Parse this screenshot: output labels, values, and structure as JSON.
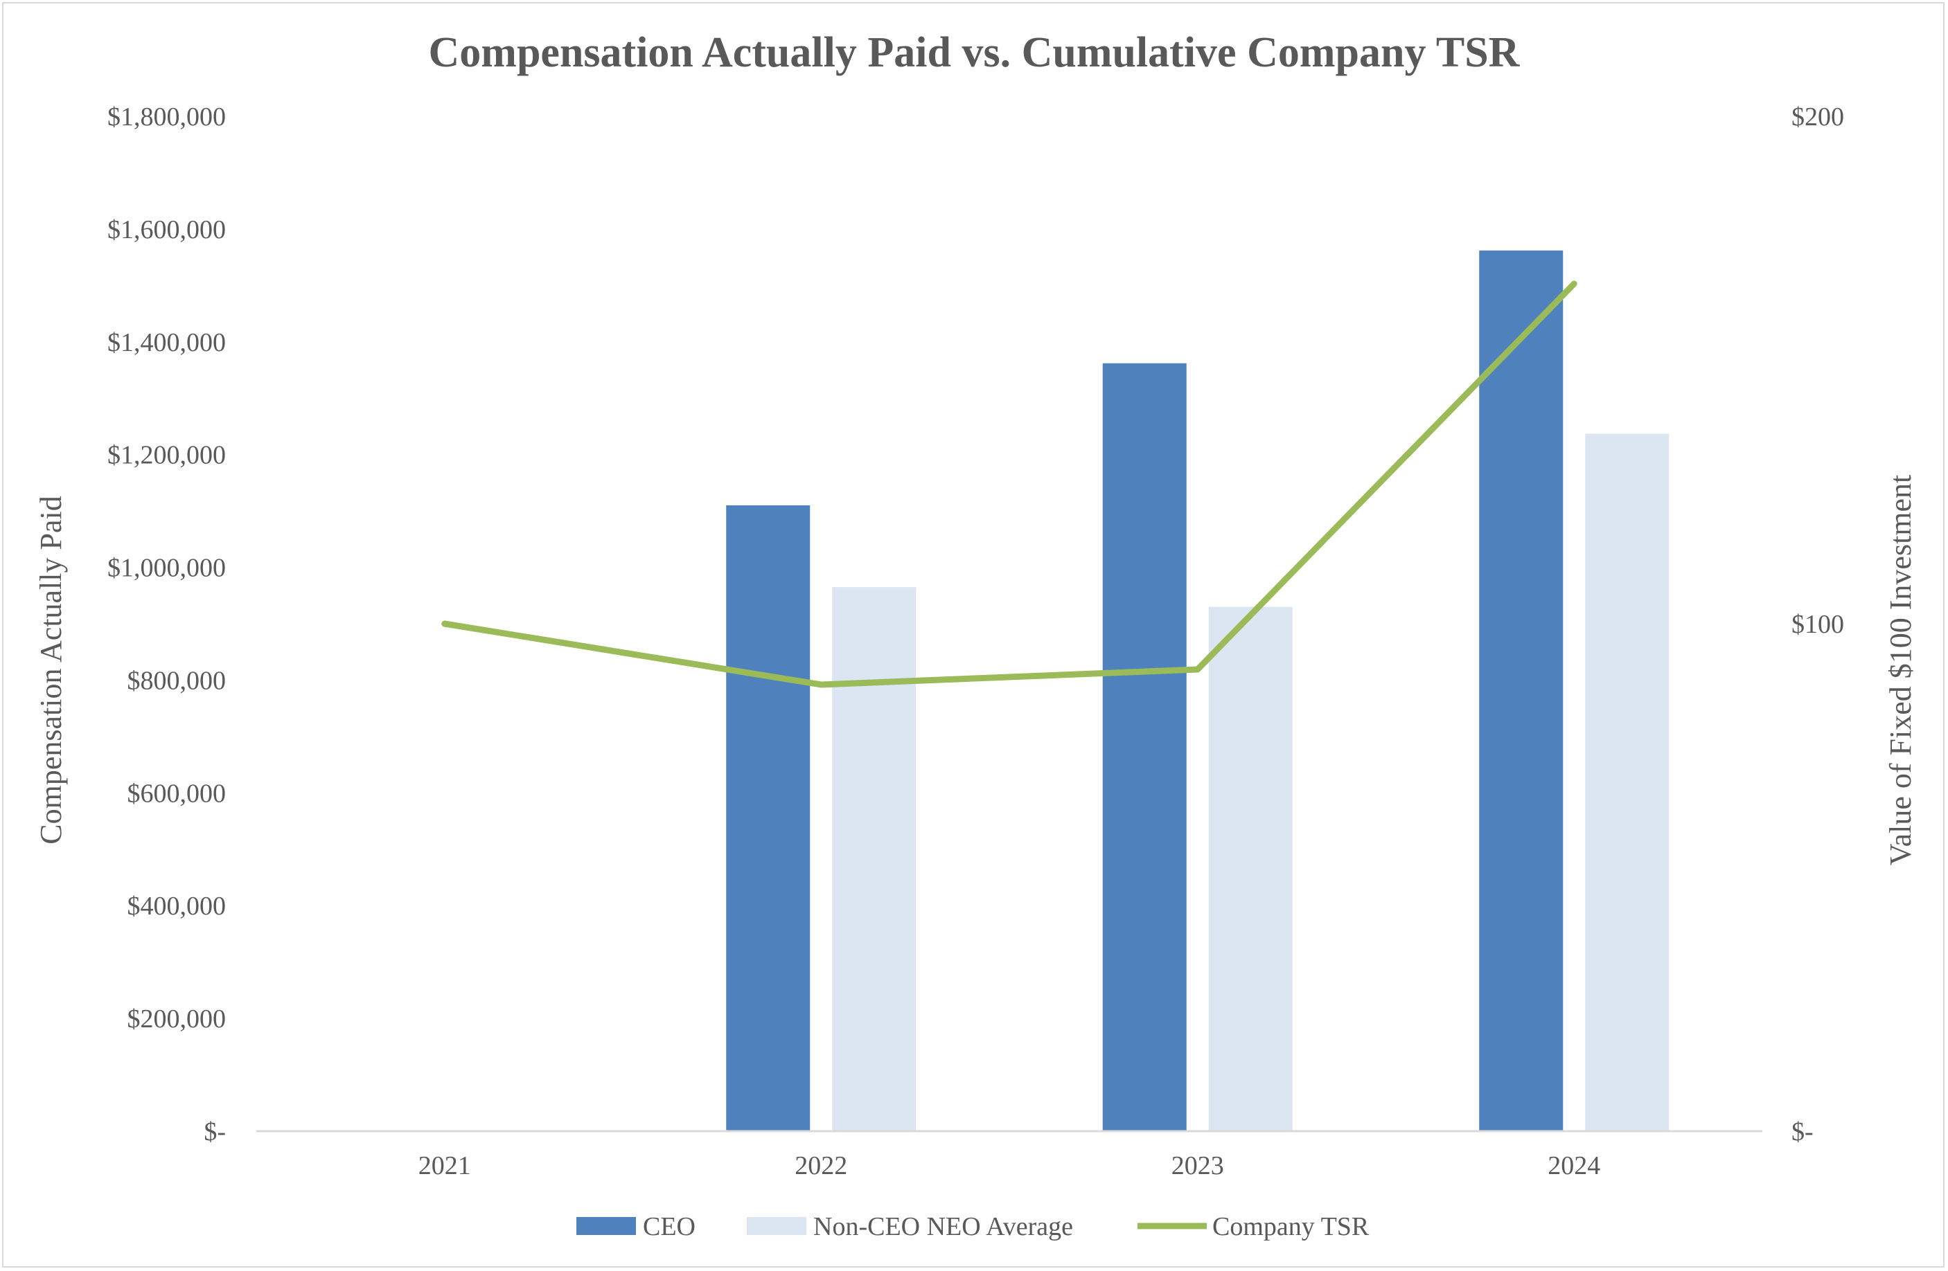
{
  "chart_data": {
    "type": "bar",
    "title": "Compensation Actually Paid vs. Cumulative Company TSR",
    "xlabel": "",
    "ylabel": "Compensation Actually Paid",
    "y2label": "Value of Fixed $100 Investment",
    "categories": [
      "2021",
      "2022",
      "2023",
      "2024"
    ],
    "ylim": [
      0,
      1800000
    ],
    "y2lim": [
      0,
      200
    ],
    "y_ticks": [
      {
        "value": 0,
        "label": "$-"
      },
      {
        "value": 200000,
        "label": "$200,000"
      },
      {
        "value": 400000,
        "label": "$400,000"
      },
      {
        "value": 600000,
        "label": "$600,000"
      },
      {
        "value": 800000,
        "label": "$800,000"
      },
      {
        "value": 1000000,
        "label": "$1,000,000"
      },
      {
        "value": 1200000,
        "label": "$1,200,000"
      },
      {
        "value": 1400000,
        "label": "$1,400,000"
      },
      {
        "value": 1600000,
        "label": "$1,600,000"
      },
      {
        "value": 1800000,
        "label": "$1,800,000"
      }
    ],
    "y2_ticks": [
      {
        "value": 0,
        "label": "$-"
      },
      {
        "value": 100,
        "label": "$100"
      },
      {
        "value": 200,
        "label": "$200"
      }
    ],
    "series": [
      {
        "name": "CEO",
        "type": "bar",
        "axis": "left",
        "color": "#4f81bd",
        "values": [
          null,
          1110000,
          1362000,
          1562000
        ]
      },
      {
        "name": "Non-CEO NEO Average",
        "type": "bar",
        "axis": "left",
        "color": "#dce6f2",
        "values": [
          null,
          965000,
          930000,
          1237000
        ]
      },
      {
        "name": "Company TSR",
        "type": "line",
        "axis": "right",
        "color": "#9bbb59",
        "values": [
          100,
          88,
          91,
          167
        ]
      }
    ],
    "grid": false,
    "legend": "bottom"
  },
  "colors": {
    "text": "#595959",
    "axis_line": "#d9d9d9",
    "frame": "#d9d9d9"
  }
}
